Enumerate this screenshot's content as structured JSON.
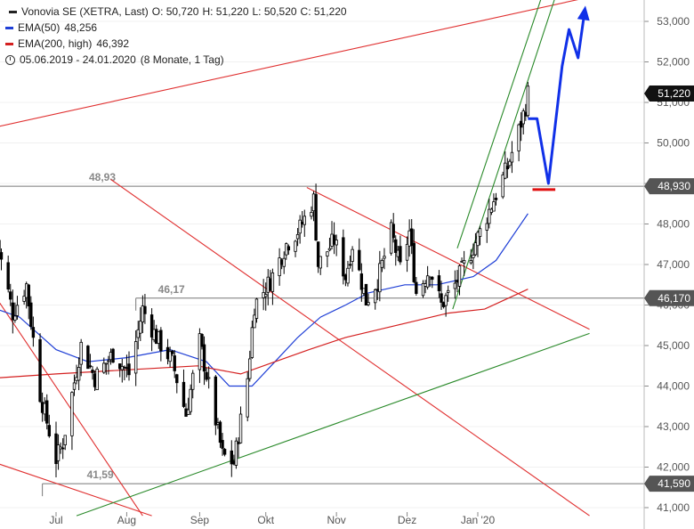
{
  "legend": {
    "title": "Vonovia SE (XETRA, Last)",
    "open": "O: 50,720",
    "high": "H: 51,220",
    "low": "L: 50,520",
    "close": "C: 51,220",
    "ema50_label": "EMA(50)",
    "ema50_value": "48,256",
    "ema200_label": "EMA(200, high)",
    "ema200_value": "46,392",
    "period": "05.06.2019 - 24.01.2020",
    "period_note": "(8 Monate, 1 Tag)"
  },
  "colors": {
    "ema50": "#1f3fd6",
    "ema200": "#d42020",
    "trend_red": "#e03030",
    "trend_green": "#2a8a2a",
    "forecast": "#1030e8",
    "candle": "#000000"
  },
  "chart_data": {
    "type": "candlestick",
    "instrument": "Vonovia SE (XETRA, Last)",
    "ylim": [
      40.8,
      53.6
    ],
    "y_ticks": [
      {
        "value": 41,
        "label": "41,000"
      },
      {
        "value": 42,
        "label": "42,000"
      },
      {
        "value": 43,
        "label": "43,000"
      },
      {
        "value": 44,
        "label": "44,000"
      },
      {
        "value": 45,
        "label": "45,000"
      },
      {
        "value": 46,
        "label": "46,000"
      },
      {
        "value": 47,
        "label": "47,000"
      },
      {
        "value": 48,
        "label": "48,000"
      },
      {
        "value": 49,
        "label": "49,000"
      },
      {
        "value": 50,
        "label": "50,000"
      },
      {
        "value": 51,
        "label": "51,000"
      },
      {
        "value": 52,
        "label": "52,000"
      },
      {
        "value": 53,
        "label": "53,000"
      }
    ],
    "x_ticks": [
      {
        "label": "Jul",
        "date": "2019-07-01"
      },
      {
        "label": "Aug",
        "date": "2019-08-01"
      },
      {
        "label": "Sep",
        "date": "2019-09-02"
      },
      {
        "label": "Okt",
        "date": "2019-10-01"
      },
      {
        "label": "Nov",
        "date": "2019-11-01"
      },
      {
        "label": "Dez",
        "date": "2019-12-02"
      },
      {
        "label": "Jan '20",
        "date": "2020-01-02"
      }
    ],
    "price_tags": [
      {
        "label": "51,220",
        "value": 51.22,
        "style": "dark"
      },
      {
        "label": "48,930",
        "value": 48.93,
        "style": "gray"
      },
      {
        "label": "46,170",
        "value": 46.17,
        "style": "gray"
      },
      {
        "label": "41,590",
        "value": 41.59,
        "style": "gray"
      }
    ],
    "levels": [
      {
        "value": 48.93,
        "label": "48,93",
        "from_date": "2019-05-20"
      },
      {
        "value": 46.17,
        "label": "46,17",
        "from_date": "2019-08-05"
      },
      {
        "value": 41.59,
        "label": "41,59",
        "from_date": "2019-06-25"
      }
    ],
    "anchors": [
      {
        "date": "2019-06-05",
        "price": 47.6
      },
      {
        "date": "2019-06-12",
        "price": 45.8
      },
      {
        "date": "2019-06-18",
        "price": 46.5
      },
      {
        "date": "2019-06-24",
        "price": 43.8
      },
      {
        "date": "2019-07-01",
        "price": 42.2
      },
      {
        "date": "2019-07-04",
        "price": 42.6
      },
      {
        "date": "2019-07-12",
        "price": 45.0
      },
      {
        "date": "2019-07-18",
        "price": 44.2
      },
      {
        "date": "2019-07-26",
        "price": 44.8
      },
      {
        "date": "2019-08-02",
        "price": 44.3
      },
      {
        "date": "2019-08-08",
        "price": 45.9
      },
      {
        "date": "2019-08-14",
        "price": 45.2
      },
      {
        "date": "2019-08-21",
        "price": 44.6
      },
      {
        "date": "2019-08-27",
        "price": 43.3
      },
      {
        "date": "2019-09-02",
        "price": 45.1
      },
      {
        "date": "2019-09-06",
        "price": 44.0
      },
      {
        "date": "2019-09-12",
        "price": 42.3
      },
      {
        "date": "2019-09-17",
        "price": 42.1
      },
      {
        "date": "2019-09-23",
        "price": 44.2
      },
      {
        "date": "2019-09-26",
        "price": 46.0
      },
      {
        "date": "2019-10-03",
        "price": 46.6
      },
      {
        "date": "2019-10-10",
        "price": 47.5
      },
      {
        "date": "2019-10-16",
        "price": 47.9
      },
      {
        "date": "2019-10-22",
        "price": 48.6
      },
      {
        "date": "2019-10-24",
        "price": 47.0
      },
      {
        "date": "2019-10-31",
        "price": 47.6
      },
      {
        "date": "2019-11-05",
        "price": 46.7
      },
      {
        "date": "2019-11-08",
        "price": 47.5
      },
      {
        "date": "2019-11-14",
        "price": 46.1
      },
      {
        "date": "2019-11-19",
        "price": 46.6
      },
      {
        "date": "2019-11-25",
        "price": 47.8
      },
      {
        "date": "2019-11-29",
        "price": 46.9
      },
      {
        "date": "2019-12-03",
        "price": 47.8
      },
      {
        "date": "2019-12-06",
        "price": 46.3
      },
      {
        "date": "2019-12-12",
        "price": 46.9
      },
      {
        "date": "2019-12-17",
        "price": 46.0
      },
      {
        "date": "2019-12-23",
        "price": 46.5
      },
      {
        "date": "2019-12-30",
        "price": 47.3
      },
      {
        "date": "2020-01-03",
        "price": 47.8
      },
      {
        "date": "2020-01-09",
        "price": 48.6
      },
      {
        "date": "2020-01-15",
        "price": 49.4
      },
      {
        "date": "2020-01-20",
        "price": 50.3
      },
      {
        "date": "2020-01-23",
        "price": 50.9
      },
      {
        "date": "2020-01-24",
        "price": 51.22
      }
    ],
    "ema50": [
      {
        "date": "2019-06-05",
        "price": 45.9
      },
      {
        "date": "2019-06-15",
        "price": 45.7
      },
      {
        "date": "2019-07-01",
        "price": 44.9
      },
      {
        "date": "2019-07-15",
        "price": 44.6
      },
      {
        "date": "2019-08-01",
        "price": 44.7
      },
      {
        "date": "2019-08-20",
        "price": 44.9
      },
      {
        "date": "2019-09-05",
        "price": 44.6
      },
      {
        "date": "2019-09-15",
        "price": 44.0
      },
      {
        "date": "2019-09-25",
        "price": 44.0
      },
      {
        "date": "2019-10-05",
        "price": 44.6
      },
      {
        "date": "2019-10-15",
        "price": 45.2
      },
      {
        "date": "2019-10-25",
        "price": 45.7
      },
      {
        "date": "2019-11-05",
        "price": 46.0
      },
      {
        "date": "2019-11-15",
        "price": 46.3
      },
      {
        "date": "2019-12-01",
        "price": 46.5
      },
      {
        "date": "2019-12-15",
        "price": 46.5
      },
      {
        "date": "2019-12-31",
        "price": 46.7
      },
      {
        "date": "2020-01-10",
        "price": 47.1
      },
      {
        "date": "2020-01-24",
        "price": 48.256
      }
    ],
    "ema200": [
      {
        "date": "2019-06-05",
        "price": 44.2
      },
      {
        "date": "2019-07-01",
        "price": 44.3
      },
      {
        "date": "2019-08-01",
        "price": 44.4
      },
      {
        "date": "2019-09-01",
        "price": 44.5
      },
      {
        "date": "2019-09-20",
        "price": 44.3
      },
      {
        "date": "2019-10-05",
        "price": 44.6
      },
      {
        "date": "2019-10-20",
        "price": 44.9
      },
      {
        "date": "2019-11-05",
        "price": 45.2
      },
      {
        "date": "2019-11-20",
        "price": 45.4
      },
      {
        "date": "2019-12-05",
        "price": 45.6
      },
      {
        "date": "2019-12-20",
        "price": 45.8
      },
      {
        "date": "2020-01-05",
        "price": 45.9
      },
      {
        "date": "2020-01-24",
        "price": 46.392
      }
    ],
    "trendlines": [
      {
        "name": "red-upper",
        "color": "red",
        "p1": {
          "date": "2019-05-20",
          "price": 50.2
        },
        "p2": {
          "date": "2020-02-20",
          "price": 53.6
        }
      },
      {
        "name": "red-mid",
        "color": "red",
        "p1": {
          "date": "2019-10-19",
          "price": 48.9
        },
        "p2": {
          "date": "2020-02-20",
          "price": 45.4
        }
      },
      {
        "name": "red-lower-a",
        "color": "red",
        "p1": {
          "date": "2019-05-20",
          "price": 47.5
        },
        "p2": {
          "date": "2019-08-08",
          "price": 40.8
        }
      },
      {
        "name": "red-lower-b",
        "color": "red",
        "p1": {
          "date": "2019-07-25",
          "price": 49.1
        },
        "p2": {
          "date": "2020-02-20",
          "price": 40.8
        }
      },
      {
        "name": "red-lower-c",
        "color": "red",
        "p1": {
          "date": "2019-05-20",
          "price": 42.4
        },
        "p2": {
          "date": "2019-08-12",
          "price": 40.8
        }
      },
      {
        "name": "green-support",
        "color": "green",
        "p1": {
          "date": "2019-07-10",
          "price": 40.8
        },
        "p2": {
          "date": "2020-02-20",
          "price": 45.3
        }
      },
      {
        "name": "green-channel-lower",
        "color": "green",
        "p1": {
          "date": "2019-12-22",
          "price": 45.9
        },
        "p2": {
          "date": "2020-02-05",
          "price": 53.6
        }
      },
      {
        "name": "green-channel-upper",
        "color": "green",
        "p1": {
          "date": "2019-12-24",
          "price": 47.4
        },
        "p2": {
          "date": "2020-01-30",
          "price": 53.6
        }
      }
    ],
    "forecast": {
      "path": [
        {
          "date": "2020-01-24",
          "price": 50.6
        },
        {
          "date": "2020-01-28",
          "price": 50.6
        },
        {
          "date": "2020-02-02",
          "price": 49.0
        },
        {
          "date": "2020-02-08",
          "price": 51.9
        },
        {
          "date": "2020-02-11",
          "price": 52.8
        },
        {
          "date": "2020-02-15",
          "price": 52.1
        },
        {
          "date": "2020-02-18",
          "price": 53.3
        }
      ],
      "target_marker": {
        "from_date": "2020-01-26",
        "to_date": "2020-02-05",
        "price": 48.85
      }
    }
  }
}
